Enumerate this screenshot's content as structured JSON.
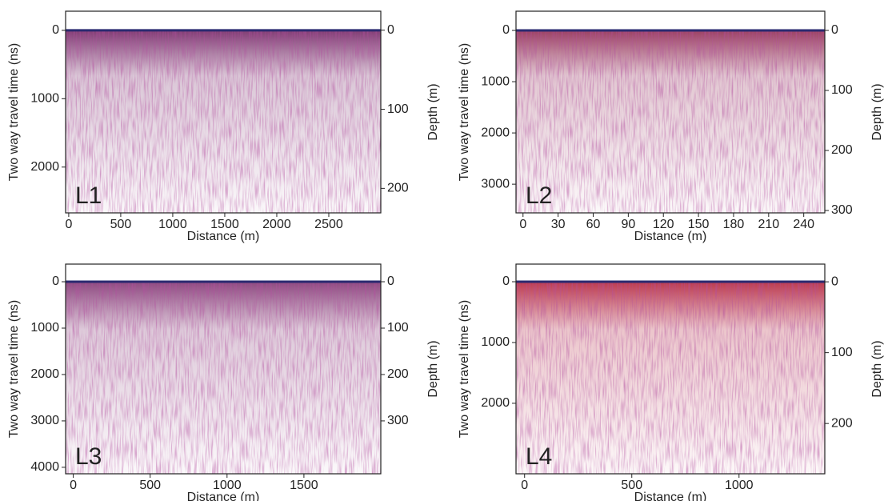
{
  "chart_data": [
    {
      "type": "radargram",
      "panel_label": "L1",
      "x_label": "Distance (m)",
      "y_label": "Two way travel time (ns)",
      "y2_label": "Depth (m)",
      "xlim": [
        -30,
        3000
      ],
      "xticks": [
        0,
        500,
        1000,
        1500,
        2000,
        2500
      ],
      "ylim": [
        -280,
        2670
      ],
      "yticks": [
        0,
        1000,
        2000
      ],
      "y2lim": [
        -24,
        231
      ],
      "y2ticks": [
        0,
        100,
        200
      ],
      "color": "#6b1a5c",
      "grid": false
    },
    {
      "type": "radargram",
      "panel_label": "L2",
      "x_label": "Distance (m)",
      "y_label": "Two way travel time (ns)",
      "y2_label": "Depth (m)",
      "xlim": [
        -6,
        258
      ],
      "xticks": [
        0,
        30,
        60,
        90,
        120,
        150,
        180,
        210,
        240
      ],
      "ylim": [
        -375,
        3560
      ],
      "yticks": [
        0,
        1000,
        2000,
        3000
      ],
      "y2lim": [
        -32,
        304
      ],
      "y2ticks": [
        0,
        100,
        200,
        300
      ],
      "color": "#8a1f48",
      "grid": false
    },
    {
      "type": "radargram",
      "panel_label": "L3",
      "x_label": "Distance (m)",
      "y_label": "Two way travel time (ns)",
      "y2_label": "Depth (m)",
      "xlim": [
        -50,
        2000
      ],
      "xticks": [
        0,
        500,
        1000,
        1500
      ],
      "ylim": [
        -380,
        4140
      ],
      "yticks": [
        0,
        1000,
        2000,
        3000,
        4000
      ],
      "y2lim": [
        -38,
        414
      ],
      "y2ticks": [
        0,
        100,
        200,
        300
      ],
      "color": "#7a2a6a",
      "grid": false
    },
    {
      "type": "radargram",
      "panel_label": "L4",
      "x_label": "Distance (m)",
      "y_label": "Two way travel time (ns)",
      "y2_label": "Depth (m)",
      "xlim": [
        -40,
        1400
      ],
      "xticks": [
        0,
        500,
        1000
      ],
      "ylim": [
        -290,
        3160
      ],
      "yticks": [
        0,
        1000,
        2000
      ],
      "y2lim": [
        -25,
        271
      ],
      "y2ticks": [
        0,
        100,
        200
      ],
      "color": "#b01830",
      "grid": false
    }
  ]
}
